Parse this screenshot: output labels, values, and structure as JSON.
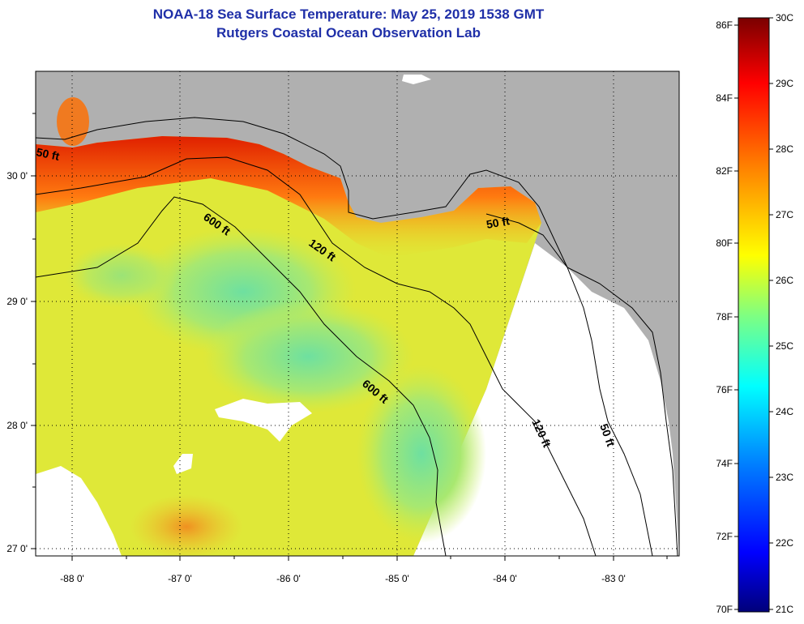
{
  "header": {
    "title": "NOAA-18 Sea Surface Temperature:  May 25, 2019 1538 GMT",
    "subtitle": "Rutgers Coastal Ocean Observation Lab"
  },
  "map": {
    "lon_ticks": [
      "-88 0'",
      "-87 0'",
      "-86 0'",
      "-85 0'",
      "-84 0'",
      "-83 0'"
    ],
    "lat_ticks": [
      "30 0'",
      "29 0'",
      "28 0'",
      "27 0'"
    ],
    "contour_labels": [
      "50 ft",
      "600 ft",
      "120 ft",
      "50 ft",
      "600 ft",
      "120 ft",
      "50 ft"
    ],
    "colors": {
      "land": "#b0b0b0",
      "no_data": "#ffffff"
    }
  },
  "colorbar": {
    "fahrenheit": [
      "86F",
      "84F",
      "82F",
      "80F",
      "78F",
      "76F",
      "74F",
      "72F",
      "70F"
    ],
    "celsius": [
      "30C",
      "29C",
      "28C",
      "27C",
      "26C",
      "25C",
      "24C",
      "23C",
      "22C",
      "21C"
    ],
    "colors": [
      "#7a0000",
      "#ff0000",
      "#ff8000",
      "#ffff00",
      "#80ff80",
      "#00ffff",
      "#0080ff",
      "#0000ff",
      "#00007a"
    ]
  }
}
